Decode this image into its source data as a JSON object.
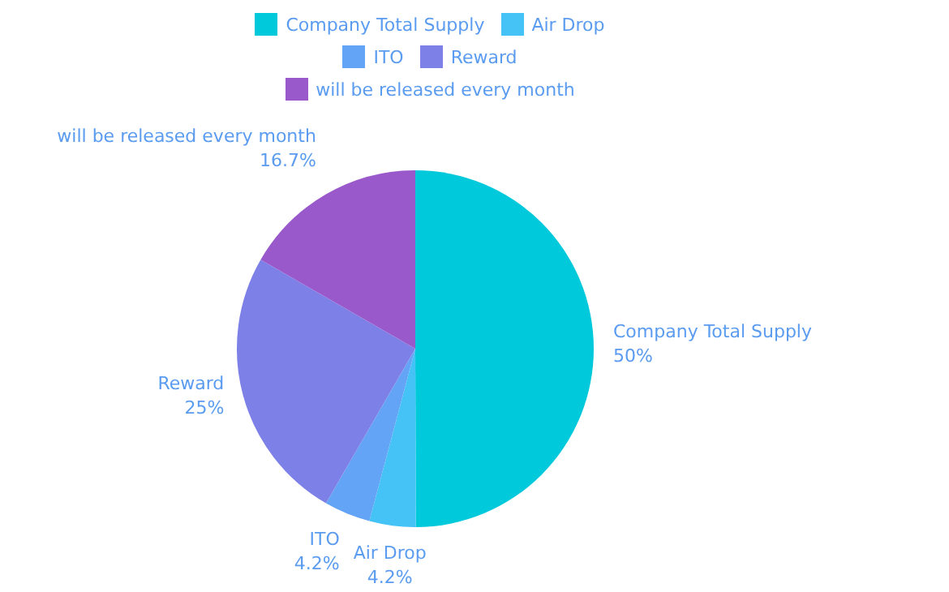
{
  "chart_data": {
    "type": "pie",
    "categories": [
      "Company Total Supply",
      "Air Drop",
      "ITO",
      "Reward",
      "will be released every month"
    ],
    "values": [
      50,
      4.2,
      4.2,
      25,
      16.7
    ],
    "value_labels": [
      "50%",
      "4.2%",
      "4.2%",
      "25%",
      "16.7%"
    ],
    "colors": [
      "#00c9db",
      "#45c3f7",
      "#64a4f6",
      "#7d80e6",
      "#9a59cb"
    ],
    "legend": "top"
  }
}
